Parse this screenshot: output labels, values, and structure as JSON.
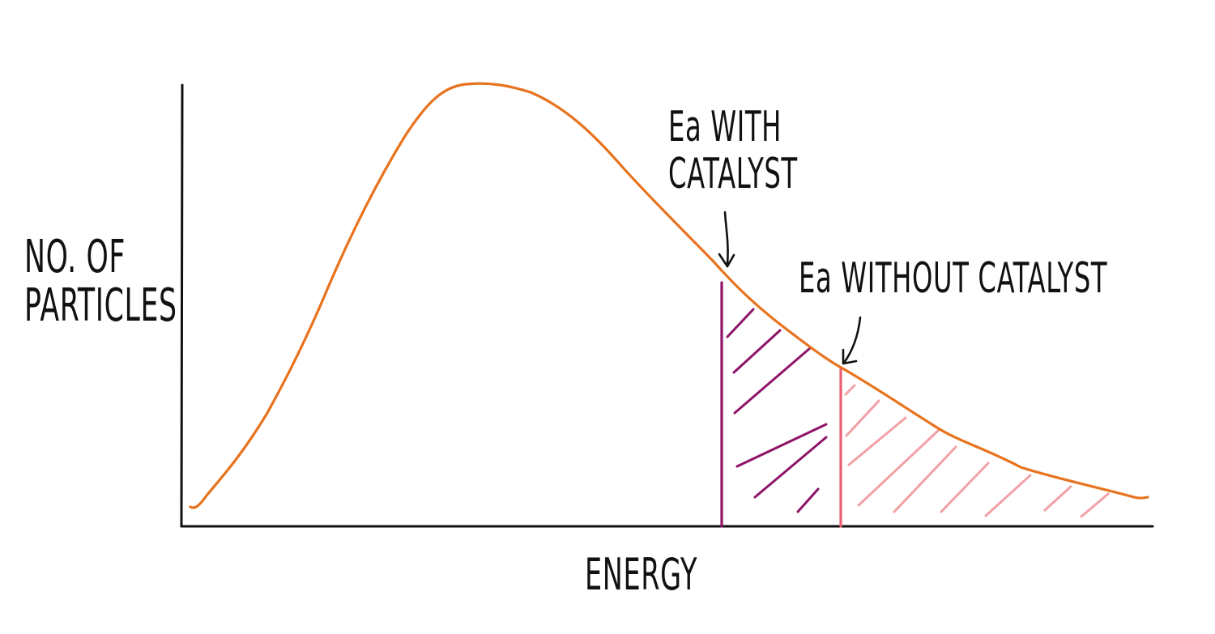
{
  "axes": {
    "y_label_line1": "NO. OF",
    "y_label_line2": "PARTICLES",
    "x_label": "ENERGY"
  },
  "annotations": {
    "with_catalyst_line1": "Ea WITH",
    "with_catalyst_line2": "CATALYST",
    "without_catalyst": "Ea WITHOUT CATALYST"
  },
  "colors": {
    "curve": "#e8731e",
    "axis": "#111111",
    "with_catalyst": "#8e1468",
    "without_catalyst": "#ec5f73",
    "without_catalyst_hatch": "#f2a0a6"
  }
}
